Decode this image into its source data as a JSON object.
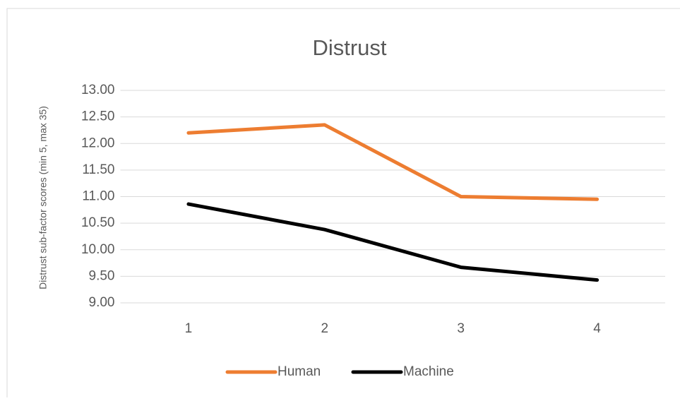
{
  "chart_data": {
    "type": "line",
    "title": "Distrust",
    "y_axis_label": "Distrust sub-factor scores (min 5, max 35)",
    "categories": [
      "1",
      "2",
      "3",
      "4"
    ],
    "series": [
      {
        "name": "Human",
        "color": "#ed7d31",
        "values": [
          12.2,
          12.35,
          11.0,
          10.95
        ]
      },
      {
        "name": "Machine",
        "color": "#000000",
        "values": [
          10.86,
          10.38,
          9.67,
          9.43
        ]
      }
    ],
    "ylim": [
      9,
      13
    ],
    "yticks": [
      {
        "value": 9,
        "label": "9.00"
      },
      {
        "value": 9.5,
        "label": "9.50"
      },
      {
        "value": 10,
        "label": "10.00"
      },
      {
        "value": 10.5,
        "label": "10.50"
      },
      {
        "value": 11,
        "label": "11.00"
      },
      {
        "value": 11.5,
        "label": "11.50"
      },
      {
        "value": 12,
        "label": "12.00"
      },
      {
        "value": 12.5,
        "label": "12.50"
      },
      {
        "value": 13,
        "label": "13.00"
      }
    ],
    "grid": true,
    "legend": "bottom"
  }
}
